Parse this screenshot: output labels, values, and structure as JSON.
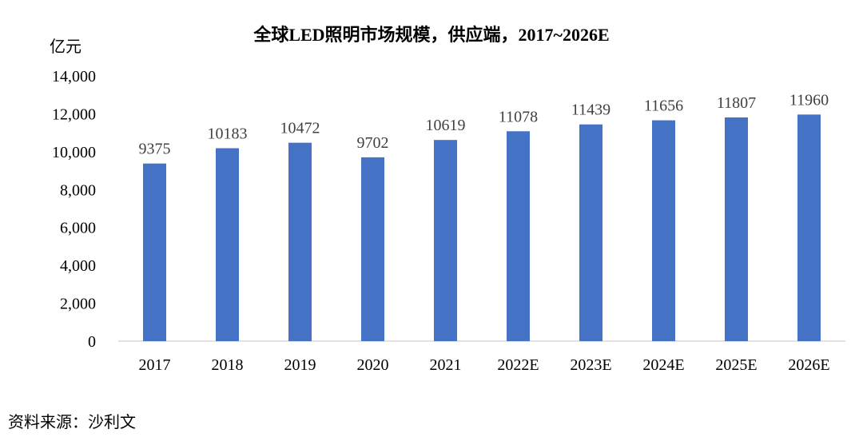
{
  "chart_data": {
    "type": "bar",
    "title": "全球LED照明市场规模，供应端，2017~2026E",
    "ylabel": "亿元",
    "categories": [
      "2017",
      "2018",
      "2019",
      "2020",
      "2021",
      "2022E",
      "2023E",
      "2024E",
      "2025E",
      "2026E"
    ],
    "values": [
      9375,
      10183,
      10472,
      9702,
      10619,
      11078,
      11439,
      11656,
      11807,
      11960
    ],
    "data_labels": [
      "9375",
      "10183",
      "10472",
      "9702",
      "10619",
      "11078",
      "11439",
      "11656",
      "11807",
      "11960"
    ],
    "yticks": [
      "0",
      "2,000",
      "4,000",
      "6,000",
      "8,000",
      "10,000",
      "12,000",
      "14,000"
    ],
    "ytick_values": [
      0,
      2000,
      4000,
      6000,
      8000,
      10000,
      12000,
      14000
    ],
    "ylim": [
      0,
      14000
    ],
    "bar_color": "#4472C4",
    "axis_color": "#D9D9D9",
    "grid": false,
    "legend": "none"
  },
  "source": "资料来源：沙利文"
}
